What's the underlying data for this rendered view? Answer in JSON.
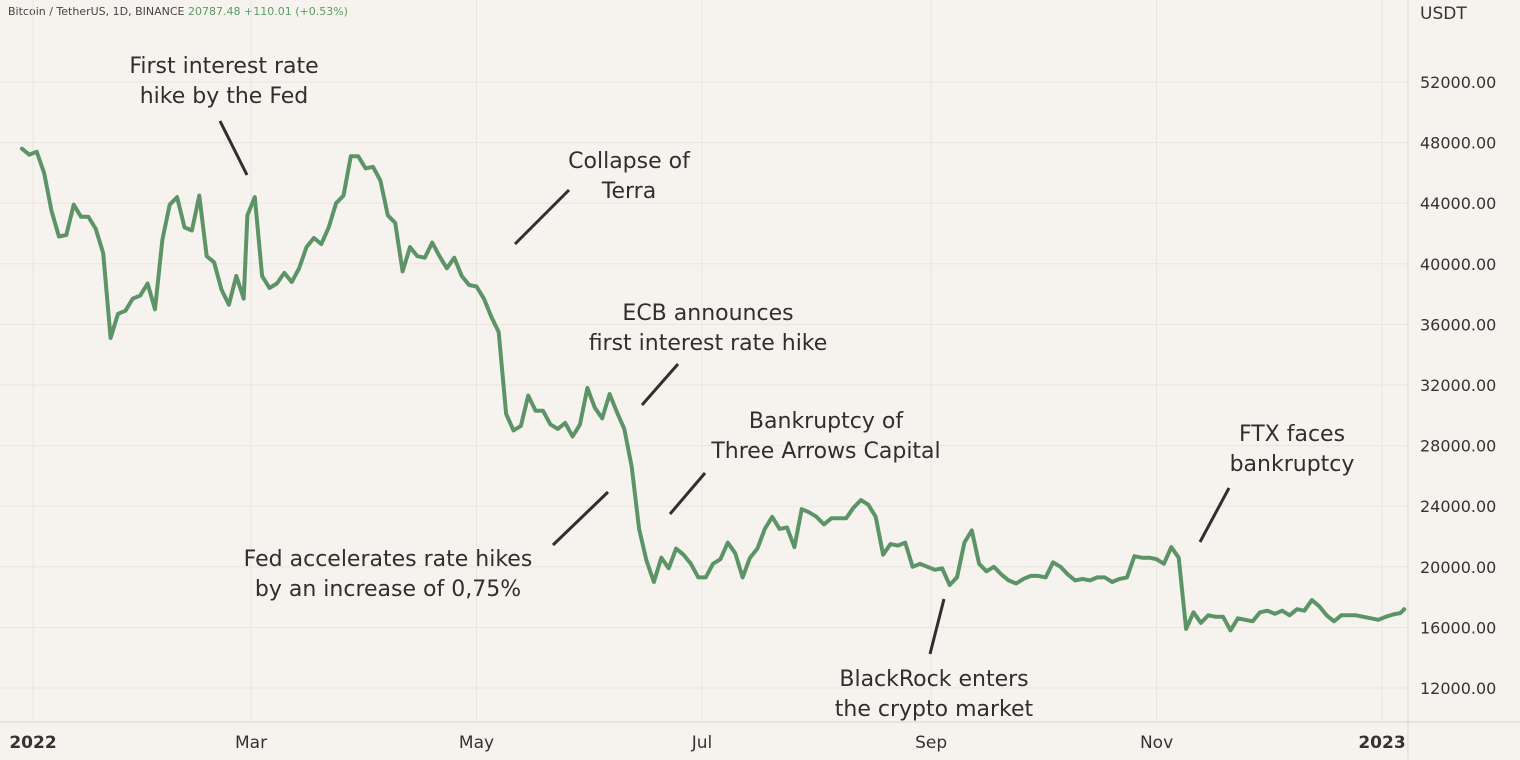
{
  "header": {
    "symbol": "Bitcoin / TetherUS, 1D, BINANCE",
    "last_price": "20787.48",
    "change": "+110.01 (+0.53%)"
  },
  "price_axis_title": "USDT",
  "colors": {
    "line": "#5d9467",
    "background": "#f6f3ef",
    "grid": "#e8e4de",
    "text": "#2f2f2f"
  },
  "chart_data": {
    "type": "line",
    "title": "",
    "xlabel": "",
    "ylabel": "USDT",
    "ylim": [
      10000,
      55000
    ],
    "grid": true,
    "y_ticks": [
      "52000.00",
      "48000.00",
      "44000.00",
      "40000.00",
      "36000.00",
      "32000.00",
      "28000.00",
      "24000.00",
      "20000.00",
      "16000.00",
      "12000.00"
    ],
    "x_ticks": [
      {
        "label": "2022",
        "date": "2022-01-01",
        "bold": true
      },
      {
        "label": "Mar",
        "date": "2022-03-01"
      },
      {
        "label": "May",
        "date": "2022-05-01"
      },
      {
        "label": "Jul",
        "date": "2022-07-01"
      },
      {
        "label": "Sep",
        "date": "2022-09-01"
      },
      {
        "label": "Nov",
        "date": "2022-11-01"
      },
      {
        "label": "2023",
        "date": "2023-01-01",
        "bold": true
      }
    ],
    "series": [
      {
        "points": [
          [
            "2021-12-29",
            47600
          ],
          [
            "2021-12-31",
            47200
          ],
          [
            "2022-01-02",
            47400
          ],
          [
            "2022-01-04",
            46000
          ],
          [
            "2022-01-06",
            43500
          ],
          [
            "2022-01-08",
            41800
          ],
          [
            "2022-01-10",
            41900
          ],
          [
            "2022-01-12",
            43900
          ],
          [
            "2022-01-14",
            43100
          ],
          [
            "2022-01-16",
            43100
          ],
          [
            "2022-01-18",
            42300
          ],
          [
            "2022-01-20",
            40700
          ],
          [
            "2022-01-22",
            35100
          ],
          [
            "2022-01-24",
            36700
          ],
          [
            "2022-01-26",
            36900
          ],
          [
            "2022-01-28",
            37700
          ],
          [
            "2022-01-30",
            37900
          ],
          [
            "2022-02-01",
            38700
          ],
          [
            "2022-02-03",
            37000
          ],
          [
            "2022-02-05",
            41600
          ],
          [
            "2022-02-07",
            43900
          ],
          [
            "2022-02-09",
            44400
          ],
          [
            "2022-02-11",
            42400
          ],
          [
            "2022-02-13",
            42200
          ],
          [
            "2022-02-15",
            44500
          ],
          [
            "2022-02-17",
            40500
          ],
          [
            "2022-02-19",
            40100
          ],
          [
            "2022-02-21",
            38300
          ],
          [
            "2022-02-23",
            37300
          ],
          [
            "2022-02-25",
            39200
          ],
          [
            "2022-02-27",
            37700
          ],
          [
            "2022-02-28",
            43200
          ],
          [
            "2022-03-02",
            44400
          ],
          [
            "2022-03-04",
            39200
          ],
          [
            "2022-03-06",
            38400
          ],
          [
            "2022-03-08",
            38700
          ],
          [
            "2022-03-10",
            39400
          ],
          [
            "2022-03-12",
            38800
          ],
          [
            "2022-03-14",
            39700
          ],
          [
            "2022-03-16",
            41100
          ],
          [
            "2022-03-18",
            41700
          ],
          [
            "2022-03-20",
            41300
          ],
          [
            "2022-03-22",
            42400
          ],
          [
            "2022-03-24",
            44000
          ],
          [
            "2022-03-26",
            44500
          ],
          [
            "2022-03-28",
            47100
          ],
          [
            "2022-03-30",
            47100
          ],
          [
            "2022-04-01",
            46300
          ],
          [
            "2022-04-03",
            46400
          ],
          [
            "2022-04-05",
            45500
          ],
          [
            "2022-04-07",
            43200
          ],
          [
            "2022-04-09",
            42700
          ],
          [
            "2022-04-11",
            39500
          ],
          [
            "2022-04-13",
            41100
          ],
          [
            "2022-04-15",
            40500
          ],
          [
            "2022-04-17",
            40400
          ],
          [
            "2022-04-19",
            41400
          ],
          [
            "2022-04-21",
            40500
          ],
          [
            "2022-04-23",
            39700
          ],
          [
            "2022-04-25",
            40400
          ],
          [
            "2022-04-27",
            39200
          ],
          [
            "2022-04-29",
            38600
          ],
          [
            "2022-05-01",
            38500
          ],
          [
            "2022-05-03",
            37700
          ],
          [
            "2022-05-05",
            36500
          ],
          [
            "2022-05-07",
            35500
          ],
          [
            "2022-05-09",
            30100
          ],
          [
            "2022-05-11",
            29000
          ],
          [
            "2022-05-13",
            29300
          ],
          [
            "2022-05-15",
            31300
          ],
          [
            "2022-05-17",
            30300
          ],
          [
            "2022-05-19",
            30300
          ],
          [
            "2022-05-21",
            29400
          ],
          [
            "2022-05-23",
            29100
          ],
          [
            "2022-05-25",
            29500
          ],
          [
            "2022-05-27",
            28600
          ],
          [
            "2022-05-29",
            29400
          ],
          [
            "2022-05-31",
            31800
          ],
          [
            "2022-06-02",
            30500
          ],
          [
            "2022-06-04",
            29800
          ],
          [
            "2022-06-06",
            31400
          ],
          [
            "2022-06-08",
            30200
          ],
          [
            "2022-06-10",
            29100
          ],
          [
            "2022-06-12",
            26600
          ],
          [
            "2022-06-14",
            22500
          ],
          [
            "2022-06-16",
            20400
          ],
          [
            "2022-06-18",
            19000
          ],
          [
            "2022-06-20",
            20600
          ],
          [
            "2022-06-22",
            19900
          ],
          [
            "2022-06-24",
            21200
          ],
          [
            "2022-06-26",
            20800
          ],
          [
            "2022-06-28",
            20200
          ],
          [
            "2022-06-30",
            19300
          ],
          [
            "2022-07-02",
            19300
          ],
          [
            "2022-07-04",
            20200
          ],
          [
            "2022-07-06",
            20500
          ],
          [
            "2022-07-08",
            21600
          ],
          [
            "2022-07-10",
            20900
          ],
          [
            "2022-07-12",
            19300
          ],
          [
            "2022-07-14",
            20600
          ],
          [
            "2022-07-16",
            21200
          ],
          [
            "2022-07-18",
            22500
          ],
          [
            "2022-07-20",
            23300
          ],
          [
            "2022-07-22",
            22500
          ],
          [
            "2022-07-24",
            22600
          ],
          [
            "2022-07-26",
            21300
          ],
          [
            "2022-07-28",
            23800
          ],
          [
            "2022-07-30",
            23600
          ],
          [
            "2022-08-01",
            23300
          ],
          [
            "2022-08-03",
            22800
          ],
          [
            "2022-08-05",
            23200
          ],
          [
            "2022-08-07",
            23200
          ],
          [
            "2022-08-09",
            23200
          ],
          [
            "2022-08-11",
            23900
          ],
          [
            "2022-08-13",
            24400
          ],
          [
            "2022-08-15",
            24100
          ],
          [
            "2022-08-17",
            23300
          ],
          [
            "2022-08-19",
            20800
          ],
          [
            "2022-08-21",
            21500
          ],
          [
            "2022-08-23",
            21400
          ],
          [
            "2022-08-25",
            21600
          ],
          [
            "2022-08-27",
            20000
          ],
          [
            "2022-08-29",
            20200
          ],
          [
            "2022-08-31",
            20000
          ],
          [
            "2022-09-02",
            19800
          ],
          [
            "2022-09-04",
            19900
          ],
          [
            "2022-09-06",
            18800
          ],
          [
            "2022-09-08",
            19300
          ],
          [
            "2022-09-10",
            21600
          ],
          [
            "2022-09-12",
            22400
          ],
          [
            "2022-09-14",
            20200
          ],
          [
            "2022-09-16",
            19700
          ],
          [
            "2022-09-18",
            20000
          ],
          [
            "2022-09-20",
            19500
          ],
          [
            "2022-09-22",
            19100
          ],
          [
            "2022-09-24",
            18900
          ],
          [
            "2022-09-26",
            19200
          ],
          [
            "2022-09-28",
            19400
          ],
          [
            "2022-09-30",
            19400
          ],
          [
            "2022-10-02",
            19300
          ],
          [
            "2022-10-04",
            20300
          ],
          [
            "2022-10-06",
            20000
          ],
          [
            "2022-10-08",
            19500
          ],
          [
            "2022-10-10",
            19100
          ],
          [
            "2022-10-12",
            19200
          ],
          [
            "2022-10-14",
            19100
          ],
          [
            "2022-10-16",
            19300
          ],
          [
            "2022-10-18",
            19300
          ],
          [
            "2022-10-20",
            19000
          ],
          [
            "2022-10-22",
            19200
          ],
          [
            "2022-10-24",
            19300
          ],
          [
            "2022-10-26",
            20700
          ],
          [
            "2022-10-28",
            20600
          ],
          [
            "2022-10-30",
            20600
          ],
          [
            "2022-11-01",
            20500
          ],
          [
            "2022-11-03",
            20200
          ],
          [
            "2022-11-05",
            21300
          ],
          [
            "2022-11-07",
            20600
          ],
          [
            "2022-11-09",
            15900
          ],
          [
            "2022-11-11",
            17000
          ],
          [
            "2022-11-13",
            16300
          ],
          [
            "2022-11-15",
            16800
          ],
          [
            "2022-11-17",
            16700
          ],
          [
            "2022-11-19",
            16700
          ],
          [
            "2022-11-21",
            15800
          ],
          [
            "2022-11-23",
            16600
          ],
          [
            "2022-11-25",
            16500
          ],
          [
            "2022-11-27",
            16400
          ],
          [
            "2022-11-29",
            17000
          ],
          [
            "2022-12-01",
            17100
          ],
          [
            "2022-12-03",
            16900
          ],
          [
            "2022-12-05",
            17100
          ],
          [
            "2022-12-07",
            16800
          ],
          [
            "2022-12-09",
            17200
          ],
          [
            "2022-12-11",
            17100
          ],
          [
            "2022-12-13",
            17800
          ],
          [
            "2022-12-15",
            17400
          ],
          [
            "2022-12-17",
            16800
          ],
          [
            "2022-12-19",
            16400
          ],
          [
            "2022-12-21",
            16800
          ],
          [
            "2022-12-23",
            16800
          ],
          [
            "2022-12-25",
            16800
          ],
          [
            "2022-12-27",
            16700
          ],
          [
            "2022-12-29",
            16600
          ],
          [
            "2022-12-31",
            16500
          ],
          [
            "2023-01-02",
            16700
          ],
          [
            "2023-01-04",
            16850
          ],
          [
            "2023-01-06",
            16950
          ],
          [
            "2023-01-07",
            17200
          ]
        ]
      }
    ],
    "annotations": [
      {
        "text": "First interest rate hike by the Fed",
        "lines": [
          "First interest rate",
          "hike by the Fed"
        ],
        "date": "2022-03-01"
      },
      {
        "text": "Collapse of Terra",
        "lines": [
          "Collapse of",
          "Terra"
        ],
        "date": "2022-05-07"
      },
      {
        "text": "ECB announces first interest rate hike",
        "lines": [
          "ECB announces",
          "first interest rate hike"
        ],
        "date": "2022-06-09"
      },
      {
        "text": "Bankruptcy of Three Arrows Capital",
        "lines": [
          "Bankruptcy of",
          "Three Arrows Capital"
        ],
        "date": "2022-06-17"
      },
      {
        "text": "Fed accelerates rate hikes by an increase of 0,75%",
        "lines": [
          "Fed accelerates rate hikes",
          "by an increase of 0,75%"
        ],
        "date": "2022-06-15"
      },
      {
        "text": "BlackRock enters the crypto market",
        "lines": [
          "BlackRock enters",
          "the crypto market"
        ],
        "date": "2022-09-07"
      },
      {
        "text": "FTX faces bankruptcy",
        "lines": [
          "FTX faces",
          "bankruptcy"
        ],
        "date": "2022-11-08"
      }
    ]
  }
}
